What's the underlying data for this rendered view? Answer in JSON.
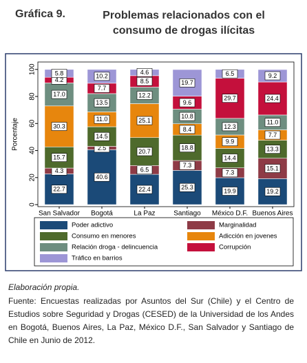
{
  "chart_data": {
    "type": "stacked-bar",
    "label": "Gráfica 9.",
    "title": "Problemas relacionados con el consumo de drogas ilícitas",
    "y_label": "Porcentaje",
    "categories": [
      "San Salvador",
      "Bogotá",
      "La Paz",
      "Santiago",
      "México D.F.",
      "Buenos Aires"
    ],
    "series": [
      {
        "name": "Poder adictivo",
        "color": "#1b4a78",
        "values": [
          22.7,
          40.6,
          22.4,
          25.3,
          19.9,
          19.2
        ],
        "value_labels": [
          "22.7",
          "40.6",
          "22.4",
          "25.3",
          "19.9",
          "19.2"
        ]
      },
      {
        "name": "Marginalidad",
        "color": "#8e3b46",
        "values": [
          4.3,
          2.5,
          6.5,
          7.3,
          7.3,
          15.1
        ],
        "value_labels": [
          "4.3",
          "2.5",
          "6.5",
          "7.3",
          "7.3",
          "15.1"
        ]
      },
      {
        "name": "Consumo en menores",
        "color": "#4e6a2c",
        "values": [
          15.7,
          14.5,
          20.7,
          18.8,
          14.4,
          13.3
        ],
        "value_labels": [
          "15.7",
          "14.5",
          "20.7",
          "18.8",
          "14.4",
          "13.3"
        ]
      },
      {
        "name": "Adicción en jovenes",
        "color": "#e7860d",
        "values": [
          30.3,
          11.0,
          25.1,
          8.4,
          9.9,
          7.7
        ],
        "value_labels": [
          "30.3",
          "11.0",
          "25.1",
          "8.4",
          "9.9",
          "7.7"
        ]
      },
      {
        "name": "Relación droga - delincuencia",
        "color": "#6e8e80",
        "values": [
          17.0,
          13.5,
          12.2,
          10.8,
          12.3,
          11.0
        ],
        "value_labels": [
          "17.0",
          "13.5",
          "12.2",
          "10.8",
          "12.3",
          "11.0"
        ]
      },
      {
        "name": "Corrupción",
        "color": "#c4103c",
        "values": [
          4.2,
          7.7,
          8.5,
          9.6,
          29.7,
          24.4
        ],
        "value_labels": [
          "4.2",
          "7.7",
          "8.5",
          "9.6",
          "29.7",
          "24.4"
        ]
      },
      {
        "name": "Tráfico en barrios",
        "color": "#9d96d6",
        "values": [
          5.8,
          10.2,
          4.6,
          19.7,
          6.5,
          9.2
        ],
        "value_labels": [
          "5.8",
          "10.2",
          "4.6",
          "19.7",
          "6.5",
          "9.2"
        ]
      }
    ],
    "ylim": [
      -1.5,
      105.5
    ],
    "yticks": [
      0,
      20,
      40,
      60,
      80,
      100
    ],
    "grid": false,
    "note": "Elaboración propia.",
    "source": "Fuente: Encuestas realizadas por Asuntos del Sur (Chile) y el Centro de Estudios sobre Seguridad y Drogas (CESED) de la Universidad de los Andes en Bogotá, Buenos Aires, La Paz, México D.F., San Salvador y Santiago de Chile en Junio de 2012."
  }
}
